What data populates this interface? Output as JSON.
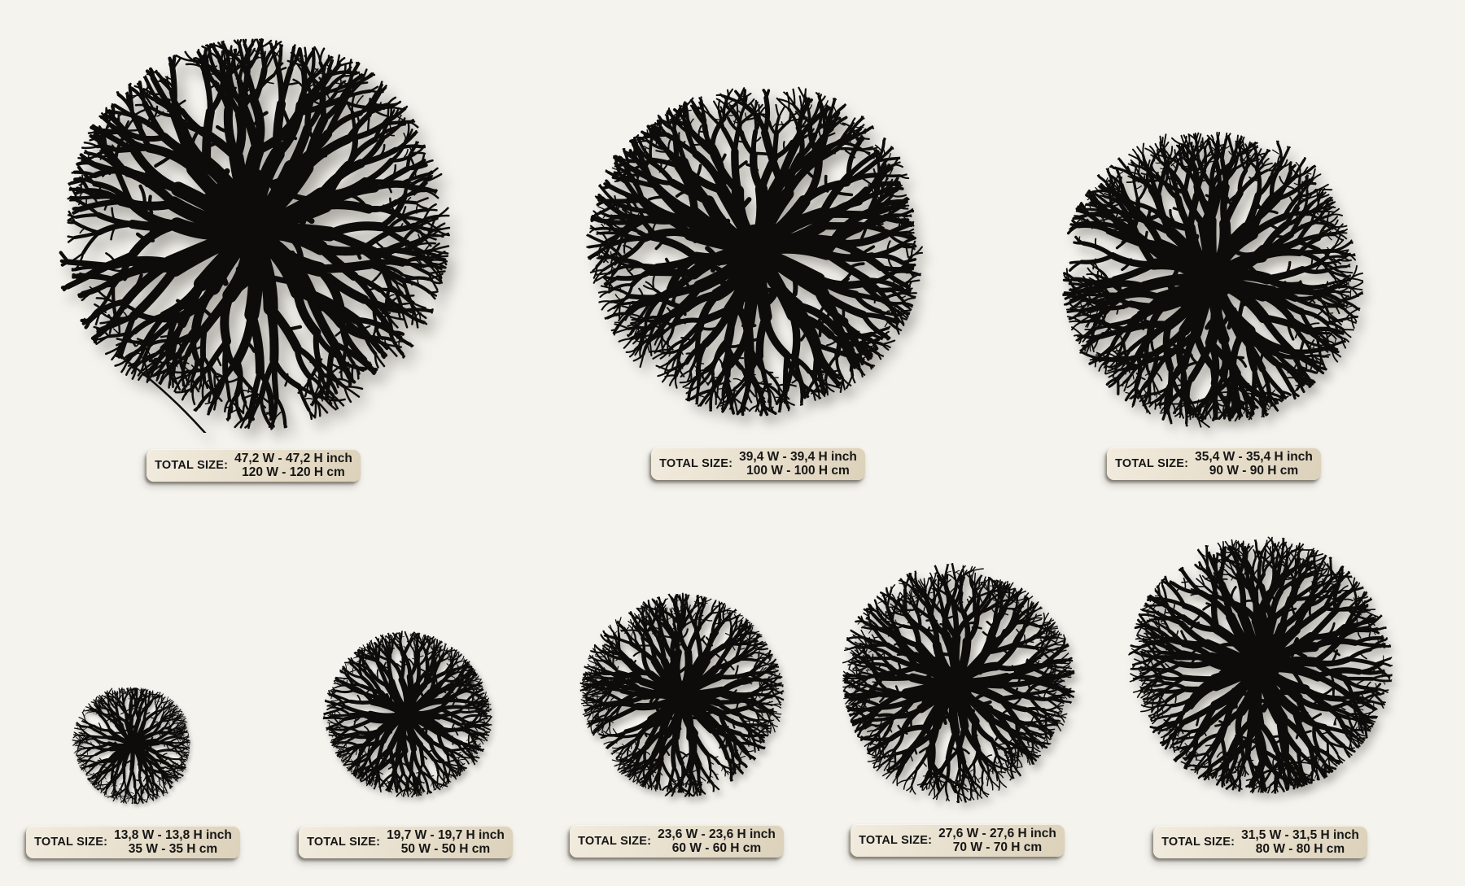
{
  "page": {
    "background_color": "#f4f3ee",
    "art_color": "#0d0c0b",
    "tag_background_color": "#e7decb",
    "tag_text_color": "#161616"
  },
  "items": [
    {
      "name": "size-120cm",
      "tag_label": "TOTAL SIZE:",
      "size_inch": "47,2 W - 47,2 H inch",
      "size_cm": "120 W - 120 H cm"
    },
    {
      "name": "size-100cm",
      "tag_label": "TOTAL SIZE:",
      "size_inch": "39,4 W - 39,4 H inch",
      "size_cm": "100 W - 100 H cm"
    },
    {
      "name": "size-90cm",
      "tag_label": "TOTAL SIZE:",
      "size_inch": "35,4 W - 35,4 H inch",
      "size_cm": "90 W - 90 H cm"
    },
    {
      "name": "size-35cm",
      "tag_label": "TOTAL SIZE:",
      "size_inch": "13,8 W - 13,8 H inch",
      "size_cm": "35 W - 35 H cm"
    },
    {
      "name": "size-50cm",
      "tag_label": "TOTAL SIZE:",
      "size_inch": "19,7 W - 19,7 H inch",
      "size_cm": "50 W - 50 H cm"
    },
    {
      "name": "size-60cm",
      "tag_label": "TOTAL SIZE:",
      "size_inch": "23,6 W - 23,6 H inch",
      "size_cm": "60 W - 60 H cm"
    },
    {
      "name": "size-70cm",
      "tag_label": "TOTAL SIZE:",
      "size_inch": "27,6 W - 27,6 H inch",
      "size_cm": "70 W - 70 H cm"
    },
    {
      "name": "size-80cm",
      "tag_label": "TOTAL SIZE:",
      "size_inch": "31,5 W - 31,5 H inch",
      "size_cm": "80 W - 80 H cm"
    }
  ]
}
